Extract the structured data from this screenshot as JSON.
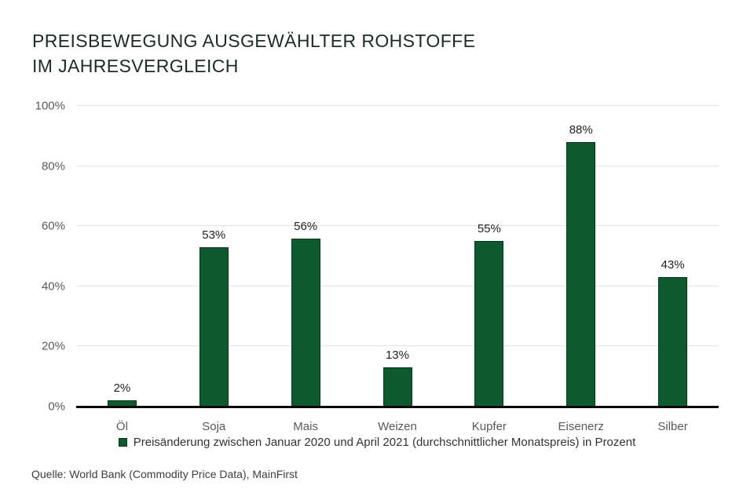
{
  "title": "PREISBEWEGUNG AUSGEWÄHLTER ROHSTOFFE\nIM JAHRESVERGLEICH",
  "legend": {
    "marker": "green-square",
    "label": "Preisänderung zwischen Januar 2020 und April 2021 (durchschnittlicher Monatspreis) in Prozent"
  },
  "source": "Quelle: World Bank (Commodity Price Data), MainFirst",
  "colors": {
    "bar": "#0e5a2f",
    "bar_border": "#08341c",
    "axis": "#000000",
    "gridline": "#e4e4e4",
    "title": "#1c2b24",
    "tick_label": "#595959",
    "value_label": "#1f1f1f",
    "legend_text": "#333333",
    "source_text": "#3d3d3d"
  },
  "chart_data": {
    "type": "bar",
    "title": "Preisbewegung ausgewählter Rohstoffe im Jahresvergleich",
    "categories": [
      "Öl",
      "Soja",
      "Mais",
      "Weizen",
      "Kupfer",
      "Eisenerz",
      "Silber"
    ],
    "values": [
      2,
      53,
      56,
      13,
      55,
      88,
      43
    ],
    "value_labels": [
      "2%",
      "53%",
      "56%",
      "13%",
      "55%",
      "88%",
      "43%"
    ],
    "xlabel": "",
    "ylabel": "",
    "ylim": [
      0,
      100
    ],
    "ytick_interval": 20,
    "yticks": [
      0,
      20,
      40,
      60,
      80,
      100
    ],
    "ytick_labels": [
      "0%",
      "20%",
      "40%",
      "60%",
      "80%",
      "100%"
    ],
    "grid": true,
    "legend_position": "bottom"
  }
}
